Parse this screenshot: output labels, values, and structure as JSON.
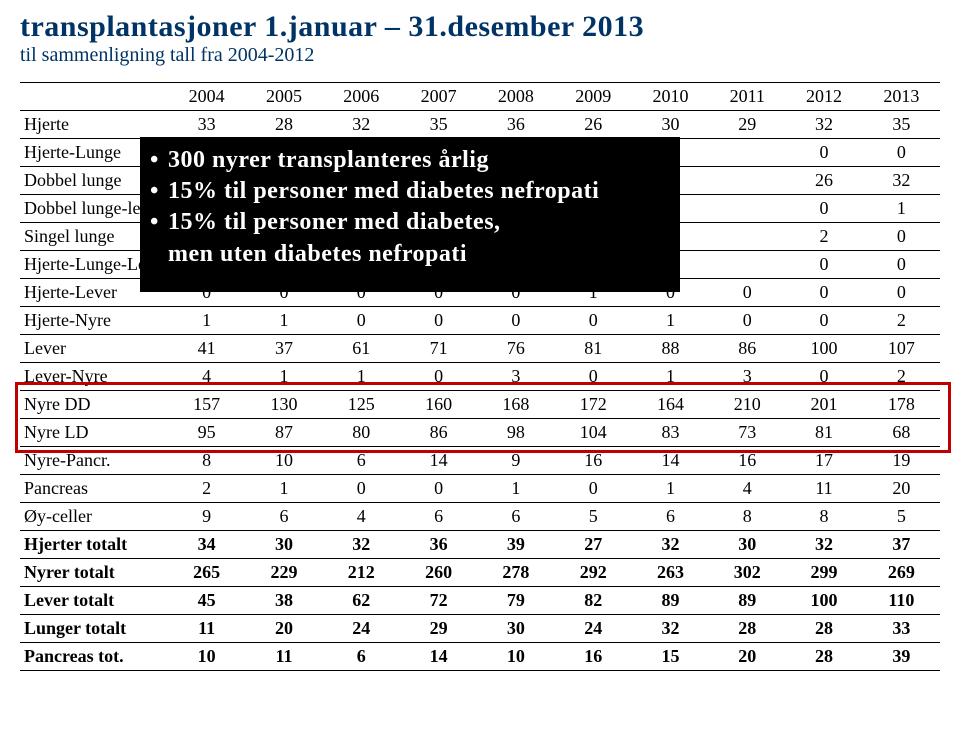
{
  "title_part1": "transplantasjoner 1.januar – 31.desember 2013",
  "subtitle": "til sammenligning tall fra 2004-2012",
  "years": [
    "2004",
    "2005",
    "2006",
    "2007",
    "2008",
    "2009",
    "2010",
    "2011",
    "2012",
    "2013"
  ],
  "rows": [
    {
      "label": "Hjerte",
      "vals": [
        "33",
        "28",
        "32",
        "35",
        "36",
        "26",
        "30",
        "29",
        "32",
        "35"
      ]
    },
    {
      "label": "Hjerte-Lunge",
      "vals": [
        "",
        "",
        "",
        "",
        "",
        "",
        "",
        "",
        "0",
        "0"
      ]
    },
    {
      "label": "Dobbel lunge",
      "vals": [
        "",
        "",
        "",
        "",
        "",
        "",
        "",
        "",
        "26",
        "32"
      ]
    },
    {
      "label": "Dobbel lunge-leve",
      "vals": [
        "",
        "",
        "",
        "",
        "",
        "",
        "",
        "",
        "0",
        "1"
      ]
    },
    {
      "label": "Singel lunge",
      "vals": [
        "",
        "",
        "",
        "",
        "",
        "",
        "",
        "",
        "2",
        "0"
      ]
    },
    {
      "label": "Hjerte-Lunge-Lev",
      "vals": [
        "",
        "",
        "",
        "",
        "",
        "",
        "",
        "",
        "0",
        "0"
      ]
    },
    {
      "label": "Hjerte-Lever",
      "vals": [
        "0",
        "0",
        "0",
        "0",
        "0",
        "1",
        "0",
        "0",
        "0",
        "0"
      ]
    },
    {
      "label": "Hjerte-Nyre",
      "vals": [
        "1",
        "1",
        "0",
        "0",
        "0",
        "0",
        "1",
        "0",
        "0",
        "2"
      ]
    },
    {
      "label": "Lever",
      "vals": [
        "41",
        "37",
        "61",
        "71",
        "76",
        "81",
        "88",
        "86",
        "100",
        "107"
      ]
    },
    {
      "label": "Lever-Nyre",
      "vals": [
        "4",
        "1",
        "1",
        "0",
        "3",
        "0",
        "1",
        "3",
        "0",
        "2"
      ]
    },
    {
      "label": "Nyre DD",
      "vals": [
        "157",
        "130",
        "125",
        "160",
        "168",
        "172",
        "164",
        "210",
        "201",
        "178"
      ]
    },
    {
      "label": "Nyre LD",
      "vals": [
        "95",
        "87",
        "80",
        "86",
        "98",
        "104",
        "83",
        "73",
        "81",
        "68"
      ]
    },
    {
      "label": "Nyre-Pancr.",
      "vals": [
        "8",
        "10",
        "6",
        "14",
        "9",
        "16",
        "14",
        "16",
        "17",
        "19"
      ]
    },
    {
      "label": "Pancreas",
      "vals": [
        "2",
        "1",
        "0",
        "0",
        "1",
        "0",
        "1",
        "4",
        "11",
        "20"
      ]
    },
    {
      "label": "Øy-celler",
      "vals": [
        "9",
        "6",
        "4",
        "6",
        "6",
        "5",
        "6",
        "8",
        "8",
        "5"
      ]
    }
  ],
  "totals": [
    {
      "label": "Hjerter totalt",
      "vals": [
        "34",
        "30",
        "32",
        "36",
        "39",
        "27",
        "32",
        "30",
        "32",
        "37"
      ]
    },
    {
      "label": "Nyrer totalt",
      "vals": [
        "265",
        "229",
        "212",
        "260",
        "278",
        "292",
        "263",
        "302",
        "299",
        "269"
      ]
    },
    {
      "label": "Lever totalt",
      "vals": [
        "45",
        "38",
        "62",
        "72",
        "79",
        "82",
        "89",
        "89",
        "100",
        "110"
      ]
    },
    {
      "label": "Lunger totalt",
      "vals": [
        "11",
        "20",
        "24",
        "29",
        "30",
        "24",
        "32",
        "28",
        "28",
        "33"
      ]
    },
    {
      "label": "Pancreas tot.",
      "vals": [
        "10",
        "11",
        "6",
        "14",
        "10",
        "16",
        "15",
        "20",
        "28",
        "39"
      ]
    }
  ],
  "overlay": {
    "l1": "300 nyrer transplanteres årlig",
    "l2": "15% til personer med diabetes nefropati",
    "l3": "15% til personer med diabetes,",
    "l4": "men uten diabetes nefropati"
  },
  "colors": {
    "title": "#003366",
    "redbox": "#c00000"
  }
}
